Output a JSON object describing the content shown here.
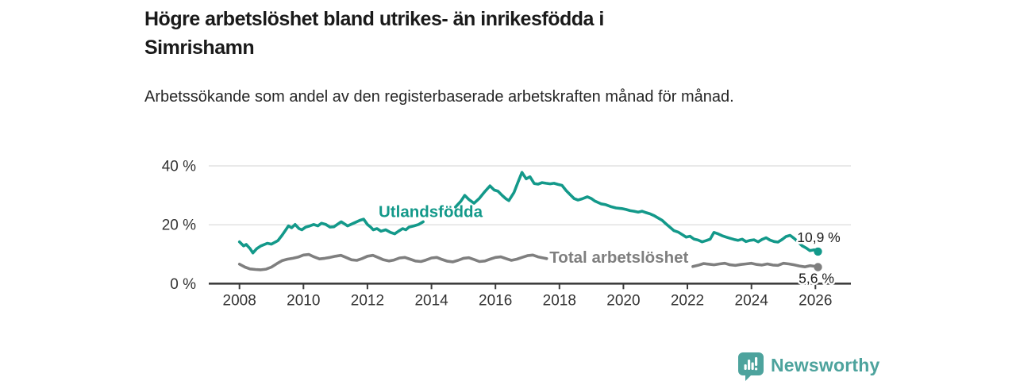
{
  "header": {
    "title": "Högre arbetslöshet bland utrikes- än inrikesfödda i Simrishamn",
    "subtitle": "Arbetssökande som andel av den registerbaserade arbetskraften månad för månad."
  },
  "footer": {
    "brand": "Newsworthy",
    "logo_icon": "newsworthy-speech-bubble-bar-chart-icon"
  },
  "colors": {
    "series_foreign_born": "#13998A",
    "series_total": "#7F7F7F",
    "axis": "#3D3D3D",
    "gridline": "#DCDCDC",
    "tick_label": "#333333",
    "title_text": "#1A1A1A",
    "end_label_text": "#1A1A1A",
    "brand_teal": "#4DA39D"
  },
  "chart_data": {
    "type": "line",
    "title": "Högre arbetslöshet bland utrikes- än inrikesfödda i Simrishamn",
    "subtitle": "Arbetssökande som andel av den registerbaserade arbetskraften månad för månad.",
    "grid": "horizontal-only",
    "legend_position": "inline-on-lines",
    "x_axis": {
      "ticks": [
        2008,
        2010,
        2012,
        2014,
        2016,
        2018,
        2020,
        2022,
        2024,
        2026
      ],
      "range": [
        2007.1,
        2027.1
      ]
    },
    "y_axis": {
      "unit": "%",
      "range": [
        0,
        40
      ],
      "ticks": [
        {
          "value": 0,
          "label": "0 %"
        },
        {
          "value": 20,
          "label": "20 %"
        },
        {
          "value": 40,
          "label": "40 %"
        }
      ]
    },
    "series": [
      {
        "name": "Total arbetslöshet",
        "color": "#7F7F7F",
        "inline_label": {
          "text": "Total arbetslöshet",
          "x_year": 2017.69,
          "y_value": 7.1
        },
        "end_value": 5.6,
        "end_label": "5,6 %",
        "end_label_placement": "below",
        "segments": [
          [
            [
              2008.0,
              6.6
            ],
            [
              2008.17,
              5.6
            ],
            [
              2008.33,
              5.0
            ],
            [
              2008.5,
              4.8
            ],
            [
              2008.67,
              4.7
            ],
            [
              2008.83,
              4.9
            ],
            [
              2009.0,
              5.6
            ],
            [
              2009.17,
              6.8
            ],
            [
              2009.33,
              7.8
            ],
            [
              2009.5,
              8.3
            ],
            [
              2009.67,
              8.6
            ],
            [
              2009.83,
              9.0
            ],
            [
              2010.0,
              9.7
            ],
            [
              2010.17,
              9.9
            ],
            [
              2010.33,
              9.1
            ],
            [
              2010.5,
              8.4
            ],
            [
              2010.67,
              8.6
            ],
            [
              2010.83,
              8.9
            ],
            [
              2011.0,
              9.3
            ],
            [
              2011.17,
              9.6
            ],
            [
              2011.33,
              8.9
            ],
            [
              2011.5,
              8.1
            ],
            [
              2011.67,
              7.9
            ],
            [
              2011.83,
              8.5
            ],
            [
              2012.0,
              9.3
            ],
            [
              2012.17,
              9.6
            ],
            [
              2012.33,
              8.9
            ],
            [
              2012.5,
              8.1
            ],
            [
              2012.67,
              7.7
            ],
            [
              2012.83,
              8.0
            ],
            [
              2013.0,
              8.7
            ],
            [
              2013.17,
              8.9
            ],
            [
              2013.33,
              8.3
            ],
            [
              2013.5,
              7.7
            ],
            [
              2013.67,
              7.5
            ],
            [
              2013.83,
              8.0
            ],
            [
              2014.0,
              8.7
            ],
            [
              2014.17,
              8.9
            ],
            [
              2014.33,
              8.2
            ],
            [
              2014.5,
              7.6
            ],
            [
              2014.67,
              7.4
            ],
            [
              2014.83,
              7.9
            ],
            [
              2015.0,
              8.6
            ],
            [
              2015.17,
              8.8
            ],
            [
              2015.33,
              8.2
            ],
            [
              2015.5,
              7.5
            ],
            [
              2015.67,
              7.7
            ],
            [
              2015.83,
              8.3
            ],
            [
              2016.0,
              8.9
            ],
            [
              2016.17,
              9.1
            ],
            [
              2016.33,
              8.5
            ],
            [
              2016.5,
              7.9
            ],
            [
              2016.67,
              8.3
            ],
            [
              2016.83,
              8.9
            ],
            [
              2017.0,
              9.5
            ],
            [
              2017.17,
              9.7
            ],
            [
              2017.33,
              9.1
            ],
            [
              2017.5,
              8.7
            ],
            [
              2017.6,
              8.5
            ]
          ],
          [
            [
              2022.17,
              5.8
            ],
            [
              2022.33,
              6.2
            ],
            [
              2022.5,
              6.8
            ],
            [
              2022.67,
              6.6
            ],
            [
              2022.83,
              6.4
            ],
            [
              2023.0,
              6.7
            ],
            [
              2023.17,
              6.9
            ],
            [
              2023.33,
              6.4
            ],
            [
              2023.5,
              6.2
            ],
            [
              2023.67,
              6.5
            ],
            [
              2023.83,
              6.7
            ],
            [
              2024.0,
              6.9
            ],
            [
              2024.17,
              6.5
            ],
            [
              2024.33,
              6.3
            ],
            [
              2024.5,
              6.7
            ],
            [
              2024.67,
              6.3
            ],
            [
              2024.83,
              6.2
            ],
            [
              2025.0,
              6.9
            ],
            [
              2025.17,
              6.7
            ],
            [
              2025.33,
              6.4
            ],
            [
              2025.5,
              6.0
            ],
            [
              2025.67,
              5.7
            ],
            [
              2025.83,
              6.1
            ],
            [
              2025.96,
              5.9
            ],
            [
              2026.08,
              5.6
            ]
          ]
        ]
      },
      {
        "name": "Utlandsfödda",
        "color": "#13998A",
        "inline_label": {
          "text": "Utlandsfödda",
          "x_year": 2012.35,
          "y_value": 22.6
        },
        "end_value": 10.9,
        "end_label": "10,9 %",
        "end_label_placement": "above",
        "segments": [
          [
            [
              2008.0,
              14.2
            ],
            [
              2008.13,
              12.8
            ],
            [
              2008.21,
              13.3
            ],
            [
              2008.33,
              11.9
            ],
            [
              2008.42,
              10.4
            ],
            [
              2008.54,
              11.9
            ],
            [
              2008.67,
              12.8
            ],
            [
              2008.87,
              13.7
            ],
            [
              2009.0,
              13.4
            ],
            [
              2009.2,
              14.6
            ],
            [
              2009.33,
              16.4
            ],
            [
              2009.45,
              18.3
            ],
            [
              2009.53,
              19.6
            ],
            [
              2009.63,
              19.0
            ],
            [
              2009.74,
              20.1
            ],
            [
              2009.86,
              18.7
            ],
            [
              2009.95,
              18.3
            ],
            [
              2010.07,
              19.2
            ],
            [
              2010.2,
              19.6
            ],
            [
              2010.32,
              20.1
            ],
            [
              2010.45,
              19.6
            ],
            [
              2010.56,
              20.5
            ],
            [
              2010.7,
              20.1
            ],
            [
              2010.83,
              19.2
            ],
            [
              2010.95,
              19.3
            ],
            [
              2011.18,
              21.0
            ],
            [
              2011.38,
              19.6
            ],
            [
              2011.56,
              20.5
            ],
            [
              2011.76,
              21.5
            ],
            [
              2011.88,
              21.9
            ],
            [
              2012.0,
              20.1
            ],
            [
              2012.1,
              19.2
            ],
            [
              2012.18,
              18.3
            ],
            [
              2012.3,
              18.7
            ],
            [
              2012.42,
              17.8
            ],
            [
              2012.57,
              18.3
            ],
            [
              2012.72,
              17.4
            ],
            [
              2012.85,
              16.9
            ],
            [
              2012.97,
              17.8
            ],
            [
              2013.1,
              18.7
            ],
            [
              2013.2,
              18.3
            ],
            [
              2013.3,
              19.2
            ],
            [
              2013.45,
              19.6
            ],
            [
              2013.6,
              20.1
            ],
            [
              2013.74,
              21.0
            ]
          ],
          [
            [
              2014.75,
              26.0
            ],
            [
              2014.92,
              28.0
            ],
            [
              2015.04,
              30.0
            ],
            [
              2015.17,
              28.6
            ],
            [
              2015.33,
              27.3
            ],
            [
              2015.5,
              29.0
            ],
            [
              2015.67,
              31.3
            ],
            [
              2015.83,
              33.2
            ],
            [
              2015.96,
              31.8
            ],
            [
              2016.08,
              31.4
            ],
            [
              2016.21,
              30.0
            ],
            [
              2016.33,
              28.8
            ],
            [
              2016.42,
              28.2
            ],
            [
              2016.58,
              31.0
            ],
            [
              2016.71,
              34.6
            ],
            [
              2016.83,
              37.8
            ],
            [
              2016.96,
              35.6
            ],
            [
              2017.08,
              36.3
            ],
            [
              2017.21,
              34.0
            ],
            [
              2017.33,
              33.8
            ],
            [
              2017.46,
              34.3
            ],
            [
              2017.58,
              34.1
            ],
            [
              2017.71,
              33.9
            ],
            [
              2017.83,
              34.1
            ],
            [
              2017.96,
              33.7
            ],
            [
              2018.08,
              33.4
            ],
            [
              2018.21,
              31.6
            ],
            [
              2018.33,
              30.3
            ],
            [
              2018.46,
              28.9
            ],
            [
              2018.58,
              28.4
            ],
            [
              2018.71,
              28.8
            ],
            [
              2018.87,
              29.5
            ],
            [
              2019.0,
              28.9
            ],
            [
              2019.1,
              28.1
            ],
            [
              2019.3,
              27.1
            ],
            [
              2019.45,
              26.8
            ],
            [
              2019.6,
              26.2
            ],
            [
              2019.77,
              25.7
            ],
            [
              2019.95,
              25.5
            ],
            [
              2020.08,
              25.2
            ],
            [
              2020.21,
              24.8
            ],
            [
              2020.33,
              24.6
            ],
            [
              2020.46,
              24.3
            ],
            [
              2020.58,
              24.6
            ],
            [
              2020.71,
              24.1
            ],
            [
              2020.83,
              23.7
            ],
            [
              2020.96,
              23.1
            ],
            [
              2021.08,
              22.3
            ],
            [
              2021.21,
              21.5
            ],
            [
              2021.33,
              20.3
            ],
            [
              2021.46,
              19.1
            ],
            [
              2021.58,
              18.0
            ],
            [
              2021.71,
              17.5
            ],
            [
              2021.83,
              16.7
            ],
            [
              2021.96,
              15.8
            ],
            [
              2022.08,
              16.1
            ],
            [
              2022.21,
              15.1
            ],
            [
              2022.33,
              14.8
            ],
            [
              2022.46,
              14.2
            ],
            [
              2022.58,
              14.6
            ],
            [
              2022.71,
              15.1
            ],
            [
              2022.83,
              17.4
            ],
            [
              2022.96,
              16.9
            ],
            [
              2023.08,
              16.3
            ],
            [
              2023.21,
              15.8
            ],
            [
              2023.33,
              15.4
            ],
            [
              2023.46,
              15.0
            ],
            [
              2023.58,
              14.7
            ],
            [
              2023.71,
              15.1
            ],
            [
              2023.83,
              14.3
            ],
            [
              2023.96,
              14.7
            ],
            [
              2024.08,
              14.9
            ],
            [
              2024.21,
              14.2
            ],
            [
              2024.33,
              15.0
            ],
            [
              2024.46,
              15.6
            ],
            [
              2024.58,
              14.8
            ],
            [
              2024.71,
              14.3
            ],
            [
              2024.83,
              14.1
            ],
            [
              2024.96,
              15.0
            ],
            [
              2025.08,
              16.0
            ],
            [
              2025.21,
              16.4
            ],
            [
              2025.33,
              15.4
            ],
            [
              2025.46,
              14.2
            ],
            [
              2025.58,
              12.9
            ],
            [
              2025.71,
              12.1
            ],
            [
              2025.83,
              11.2
            ],
            [
              2025.96,
              11.5
            ],
            [
              2026.08,
              10.9
            ]
          ]
        ]
      }
    ]
  }
}
